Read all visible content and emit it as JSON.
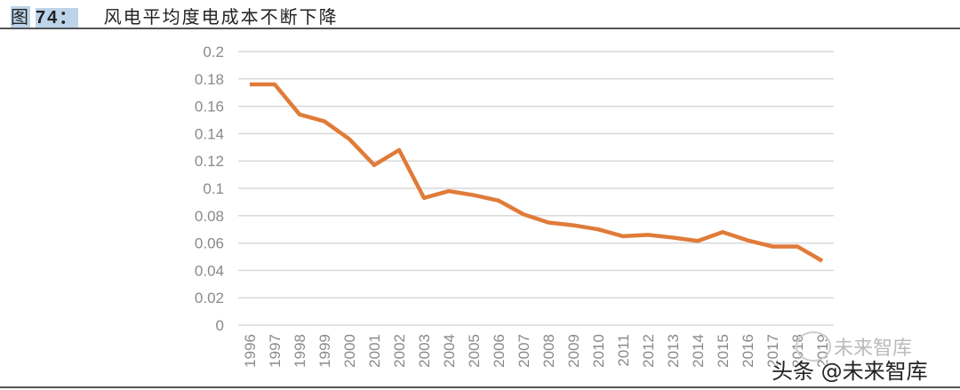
{
  "figure": {
    "label_prefix": "图",
    "label_number": "74：",
    "caption": "风电平均度电成本不断下降"
  },
  "watermark": {
    "line1": "未来智库",
    "line2": "头条 @未来智库"
  },
  "chart_data": {
    "type": "line",
    "title": "",
    "xlabel": "",
    "ylabel": "",
    "ylim": [
      0,
      0.2
    ],
    "yticks": [
      "0",
      "0.02",
      "0.04",
      "0.06",
      "0.08",
      "0.1",
      "0.12",
      "0.14",
      "0.16",
      "0.18",
      "0.2"
    ],
    "grid": true,
    "line_color": "#e07b39",
    "categories": [
      "1996",
      "1997",
      "1998",
      "1999",
      "2000",
      "2001",
      "2002",
      "2003",
      "2004",
      "2005",
      "2006",
      "2007",
      "2008",
      "2009",
      "2010",
      "2011",
      "2012",
      "2013",
      "2014",
      "2015",
      "2016",
      "2017",
      "2018",
      "2019"
    ],
    "values": [
      0.176,
      0.176,
      0.154,
      0.149,
      0.136,
      0.117,
      0.128,
      0.093,
      0.098,
      0.095,
      0.091,
      0.081,
      0.075,
      0.073,
      0.07,
      0.065,
      0.066,
      0.064,
      0.0615,
      0.068,
      0.062,
      0.0575,
      0.0575,
      0.047
    ]
  }
}
